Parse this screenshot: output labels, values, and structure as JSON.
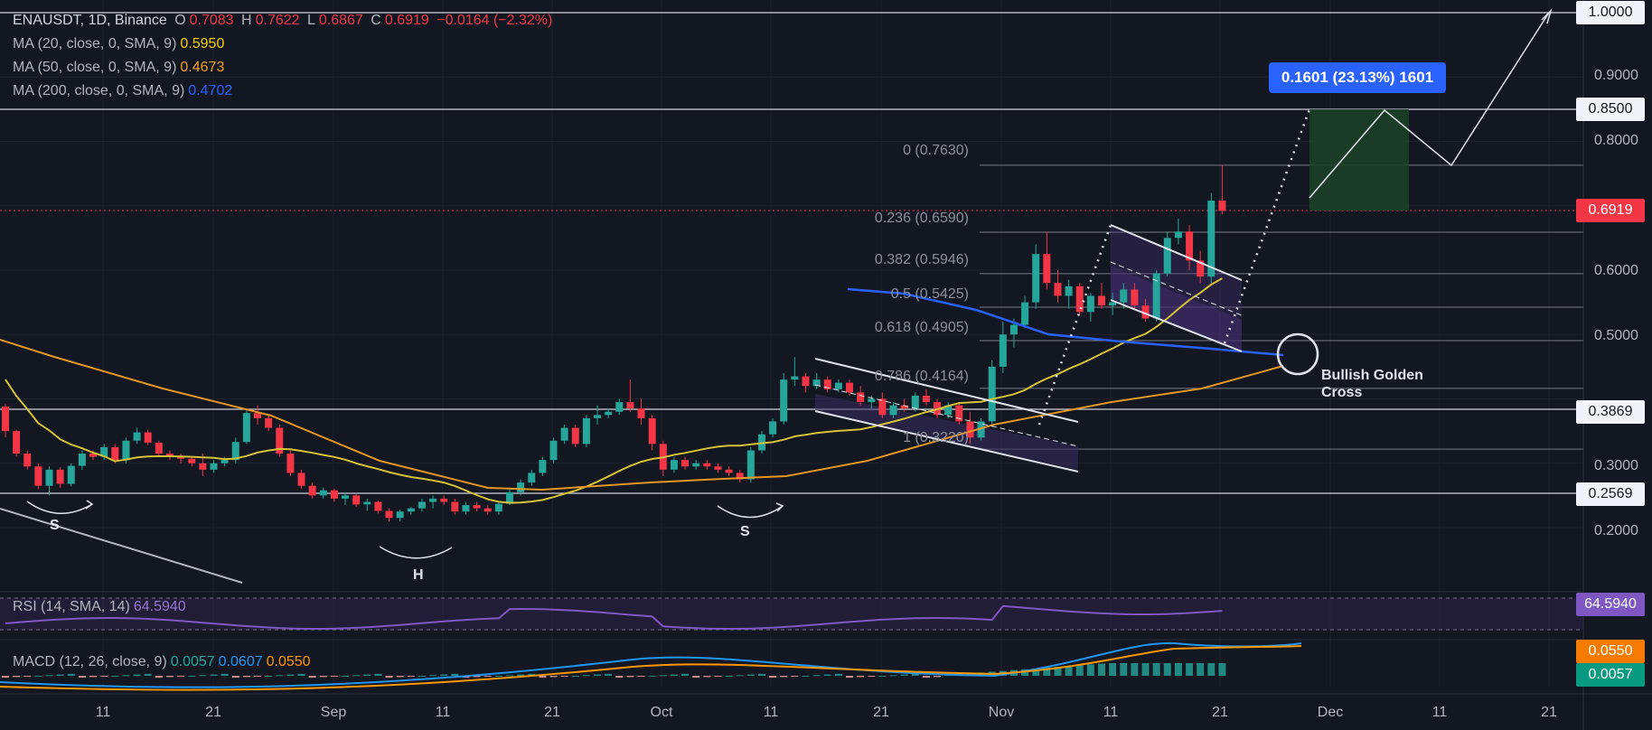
{
  "header": {
    "symbol": "ENAUSDT, 1D, Binance",
    "open_label": "O",
    "open": "0.7083",
    "high_label": "H",
    "high": "0.7622",
    "low_label": "L",
    "low": "0.6867",
    "close_label": "C",
    "close": "0.6919",
    "change": "−0.0164 (−2.32%)"
  },
  "indicators": {
    "ma20": {
      "label": "MA (20, close, 0, SMA, 9)",
      "value": "0.5950",
      "color": "#d4c238"
    },
    "ma50": {
      "label": "MA (50, close, 0, SMA, 9)",
      "value": "0.4673",
      "color": "#e39724"
    },
    "ma200": {
      "label": "MA (200, close, 0, SMA, 9)",
      "value": "0.4702",
      "color": "#2962ff"
    },
    "rsi": {
      "label": "RSI (14, SMA, 14)",
      "value": "64.5940",
      "color": "#7e57c2"
    },
    "macd": {
      "label": "MACD (12, 26, close, 9)",
      "hist": "0.0057",
      "macd": "0.0607",
      "signal": "0.0550"
    }
  },
  "price_axis": {
    "ticks": [
      "0.9000",
      "0.8000",
      "0.6000",
      "0.5000",
      "0.3000",
      "0.2000"
    ],
    "tagged": [
      {
        "value": "1.0000",
        "style": "white"
      },
      {
        "value": "0.8500",
        "style": "white"
      },
      {
        "value": "0.6919",
        "style": "red"
      },
      {
        "value": "0.3869",
        "style": "white"
      },
      {
        "value": "0.2569",
        "style": "white"
      }
    ],
    "rsi_tag": "64.5940",
    "macd_tags": [
      "0.0550",
      "0.0057"
    ]
  },
  "time_axis": [
    "11",
    "21",
    "Sep",
    "11",
    "21",
    "Oct",
    "11",
    "21",
    "Nov",
    "11",
    "21",
    "Dec",
    "11",
    "21"
  ],
  "fibonacci": [
    {
      "label": "0 (0.7630)",
      "price": 0.763
    },
    {
      "label": "0.236 (0.6590)",
      "price": 0.659
    },
    {
      "label": "0.382 (0.5946)",
      "price": 0.5946
    },
    {
      "label": "0.5 (0.5425)",
      "price": 0.5425
    },
    {
      "label": "0.618 (0.4905)",
      "price": 0.4905
    },
    {
      "label": "0.786 (0.4164)",
      "price": 0.4164
    },
    {
      "label": "1 (0.3220)",
      "price": 0.322
    }
  ],
  "annotations": {
    "target": "0.1601 (23.13%) 1601",
    "golden_cross": [
      "Bullish Golden",
      "Cross"
    ],
    "pattern_s1": "S",
    "pattern_h": "H",
    "pattern_s2": "S"
  },
  "colors": {
    "up": "#26a69a",
    "down": "#f23645",
    "background": "#131722"
  },
  "chart_data": {
    "type": "candlestick",
    "title": "ENAUSDT, 1D, Binance",
    "ylim": [
      0.12,
      1.02
    ],
    "start_date": "2024-08-01",
    "candles": [
      [
        0.388,
        0.392,
        0.34,
        0.35
      ],
      [
        0.35,
        0.352,
        0.31,
        0.315
      ],
      [
        0.315,
        0.32,
        0.29,
        0.295
      ],
      [
        0.295,
        0.3,
        0.26,
        0.265
      ],
      [
        0.265,
        0.295,
        0.25,
        0.29
      ],
      [
        0.29,
        0.294,
        0.262,
        0.268
      ],
      [
        0.268,
        0.3,
        0.264,
        0.296
      ],
      [
        0.296,
        0.32,
        0.29,
        0.315
      ],
      [
        0.315,
        0.32,
        0.305,
        0.31
      ],
      [
        0.31,
        0.33,
        0.305,
        0.325
      ],
      [
        0.325,
        0.33,
        0.3,
        0.305
      ],
      [
        0.305,
        0.34,
        0.3,
        0.335
      ],
      [
        0.335,
        0.355,
        0.33,
        0.348
      ],
      [
        0.348,
        0.352,
        0.328,
        0.332
      ],
      [
        0.332,
        0.335,
        0.31,
        0.315
      ],
      [
        0.315,
        0.32,
        0.305,
        0.31
      ],
      [
        0.31,
        0.315,
        0.3,
        0.307
      ],
      [
        0.307,
        0.31,
        0.295,
        0.3
      ],
      [
        0.3,
        0.315,
        0.28,
        0.29
      ],
      [
        0.29,
        0.305,
        0.285,
        0.3
      ],
      [
        0.3,
        0.31,
        0.295,
        0.305
      ],
      [
        0.305,
        0.34,
        0.3,
        0.333
      ],
      [
        0.333,
        0.385,
        0.33,
        0.378
      ],
      [
        0.378,
        0.39,
        0.36,
        0.37
      ],
      [
        0.37,
        0.375,
        0.35,
        0.355
      ],
      [
        0.355,
        0.36,
        0.31,
        0.315
      ],
      [
        0.315,
        0.32,
        0.28,
        0.285
      ],
      [
        0.285,
        0.29,
        0.26,
        0.265
      ],
      [
        0.265,
        0.27,
        0.245,
        0.25
      ],
      [
        0.25,
        0.262,
        0.245,
        0.258
      ],
      [
        0.258,
        0.26,
        0.24,
        0.245
      ],
      [
        0.245,
        0.255,
        0.235,
        0.25
      ],
      [
        0.25,
        0.252,
        0.232,
        0.236
      ],
      [
        0.236,
        0.245,
        0.226,
        0.24
      ],
      [
        0.24,
        0.242,
        0.222,
        0.226
      ],
      [
        0.226,
        0.23,
        0.21,
        0.215
      ],
      [
        0.215,
        0.228,
        0.21,
        0.225
      ],
      [
        0.225,
        0.232,
        0.22,
        0.23
      ],
      [
        0.23,
        0.245,
        0.225,
        0.24
      ],
      [
        0.24,
        0.25,
        0.23,
        0.245
      ],
      [
        0.245,
        0.25,
        0.235,
        0.24
      ],
      [
        0.24,
        0.245,
        0.22,
        0.225
      ],
      [
        0.225,
        0.24,
        0.22,
        0.235
      ],
      [
        0.235,
        0.24,
        0.225,
        0.23
      ],
      [
        0.23,
        0.235,
        0.22,
        0.225
      ],
      [
        0.225,
        0.24,
        0.22,
        0.237
      ],
      [
        0.237,
        0.262,
        0.235,
        0.255
      ],
      [
        0.255,
        0.275,
        0.25,
        0.27
      ],
      [
        0.27,
        0.29,
        0.265,
        0.285
      ],
      [
        0.285,
        0.31,
        0.28,
        0.305
      ],
      [
        0.305,
        0.34,
        0.3,
        0.335
      ],
      [
        0.335,
        0.36,
        0.33,
        0.355
      ],
      [
        0.355,
        0.36,
        0.325,
        0.33
      ],
      [
        0.33,
        0.375,
        0.325,
        0.37
      ],
      [
        0.37,
        0.39,
        0.36,
        0.375
      ],
      [
        0.375,
        0.385,
        0.37,
        0.38
      ],
      [
        0.38,
        0.4,
        0.375,
        0.395
      ],
      [
        0.395,
        0.43,
        0.38,
        0.385
      ],
      [
        0.385,
        0.4,
        0.36,
        0.37
      ],
      [
        0.37,
        0.375,
        0.32,
        0.33
      ],
      [
        0.33,
        0.335,
        0.28,
        0.29
      ],
      [
        0.29,
        0.31,
        0.285,
        0.305
      ],
      [
        0.305,
        0.31,
        0.29,
        0.295
      ],
      [
        0.295,
        0.305,
        0.29,
        0.3
      ],
      [
        0.3,
        0.305,
        0.29,
        0.295
      ],
      [
        0.295,
        0.3,
        0.285,
        0.29
      ],
      [
        0.29,
        0.295,
        0.28,
        0.285
      ],
      [
        0.285,
        0.29,
        0.27,
        0.275
      ],
      [
        0.275,
        0.325,
        0.27,
        0.32
      ],
      [
        0.32,
        0.35,
        0.315,
        0.345
      ],
      [
        0.345,
        0.37,
        0.34,
        0.365
      ],
      [
        0.365,
        0.44,
        0.36,
        0.43
      ],
      [
        0.43,
        0.465,
        0.42,
        0.435
      ],
      [
        0.435,
        0.44,
        0.41,
        0.42
      ],
      [
        0.42,
        0.44,
        0.415,
        0.43
      ],
      [
        0.43,
        0.435,
        0.41,
        0.415
      ],
      [
        0.415,
        0.43,
        0.41,
        0.425
      ],
      [
        0.425,
        0.43,
        0.405,
        0.41
      ],
      [
        0.41,
        0.42,
        0.39,
        0.395
      ],
      [
        0.395,
        0.405,
        0.385,
        0.4
      ],
      [
        0.4,
        0.41,
        0.37,
        0.375
      ],
      [
        0.375,
        0.395,
        0.37,
        0.39
      ],
      [
        0.39,
        0.4,
        0.38,
        0.385
      ],
      [
        0.385,
        0.41,
        0.38,
        0.405
      ],
      [
        0.405,
        0.415,
        0.39,
        0.395
      ],
      [
        0.395,
        0.4,
        0.37,
        0.375
      ],
      [
        0.375,
        0.395,
        0.37,
        0.39
      ],
      [
        0.39,
        0.395,
        0.36,
        0.365
      ],
      [
        0.365,
        0.38,
        0.33,
        0.34
      ],
      [
        0.34,
        0.37,
        0.335,
        0.365
      ],
      [
        0.365,
        0.46,
        0.36,
        0.45
      ],
      [
        0.45,
        0.52,
        0.44,
        0.5
      ],
      [
        0.5,
        0.525,
        0.48,
        0.515
      ],
      [
        0.515,
        0.56,
        0.51,
        0.55
      ],
      [
        0.55,
        0.64,
        0.54,
        0.625
      ],
      [
        0.625,
        0.66,
        0.57,
        0.58
      ],
      [
        0.58,
        0.6,
        0.55,
        0.56
      ],
      [
        0.56,
        0.585,
        0.54,
        0.575
      ],
      [
        0.575,
        0.58,
        0.53,
        0.535
      ],
      [
        0.535,
        0.565,
        0.52,
        0.56
      ],
      [
        0.56,
        0.58,
        0.54,
        0.545
      ],
      [
        0.545,
        0.565,
        0.53,
        0.55
      ],
      [
        0.55,
        0.58,
        0.54,
        0.57
      ],
      [
        0.57,
        0.58,
        0.54,
        0.545
      ],
      [
        0.545,
        0.555,
        0.52,
        0.525
      ],
      [
        0.525,
        0.6,
        0.52,
        0.595
      ],
      [
        0.595,
        0.66,
        0.59,
        0.65
      ],
      [
        0.65,
        0.68,
        0.64,
        0.66
      ],
      [
        0.66,
        0.67,
        0.6,
        0.615
      ],
      [
        0.615,
        0.63,
        0.58,
        0.59
      ],
      [
        0.59,
        0.72,
        0.58,
        0.708
      ],
      [
        0.7083,
        0.7622,
        0.6867,
        0.6919
      ]
    ]
  }
}
